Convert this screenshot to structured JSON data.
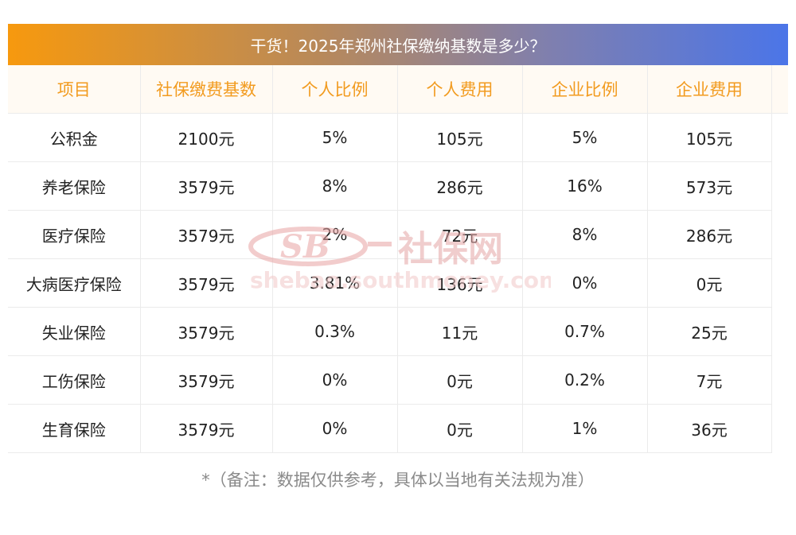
{
  "title": "干货！2025年郑州社保缴纳基数是多少？",
  "table": {
    "headers": [
      "项目",
      "社保缴费基数",
      "个人比例",
      "个人费用",
      "企业比例",
      "企业费用"
    ],
    "rows": [
      [
        "公积金",
        "2100元",
        "5%",
        "105元",
        "5%",
        "105元"
      ],
      [
        "养老保险",
        "3579元",
        "8%",
        "286元",
        "16%",
        "573元"
      ],
      [
        "医疗保险",
        "3579元",
        "2%",
        "72元",
        "8%",
        "286元"
      ],
      [
        "大病医疗保险",
        "3579元",
        "3.81%",
        "136元",
        "0%",
        "0元"
      ],
      [
        "失业保险",
        "3579元",
        "0.3%",
        "11元",
        "0.7%",
        "25元"
      ],
      [
        "工伤保险",
        "3579元",
        "0%",
        "0元",
        "0.2%",
        "7元"
      ],
      [
        "生育保险",
        "3579元",
        "0%",
        "0元",
        "1%",
        "36元"
      ]
    ]
  },
  "watermark": {
    "logo_text": "SB",
    "name": "社保网",
    "url": "shebao.southmoney.com"
  },
  "note": "*（备注：数据仅供参考，具体以当地有关法规为准）",
  "colors": {
    "title_gradient_start": "#f7990e",
    "title_gradient_end": "#4b75e8",
    "header_text": "#f29b1f",
    "header_bg": "#fffaf3",
    "watermark": "#e8a3a3"
  }
}
